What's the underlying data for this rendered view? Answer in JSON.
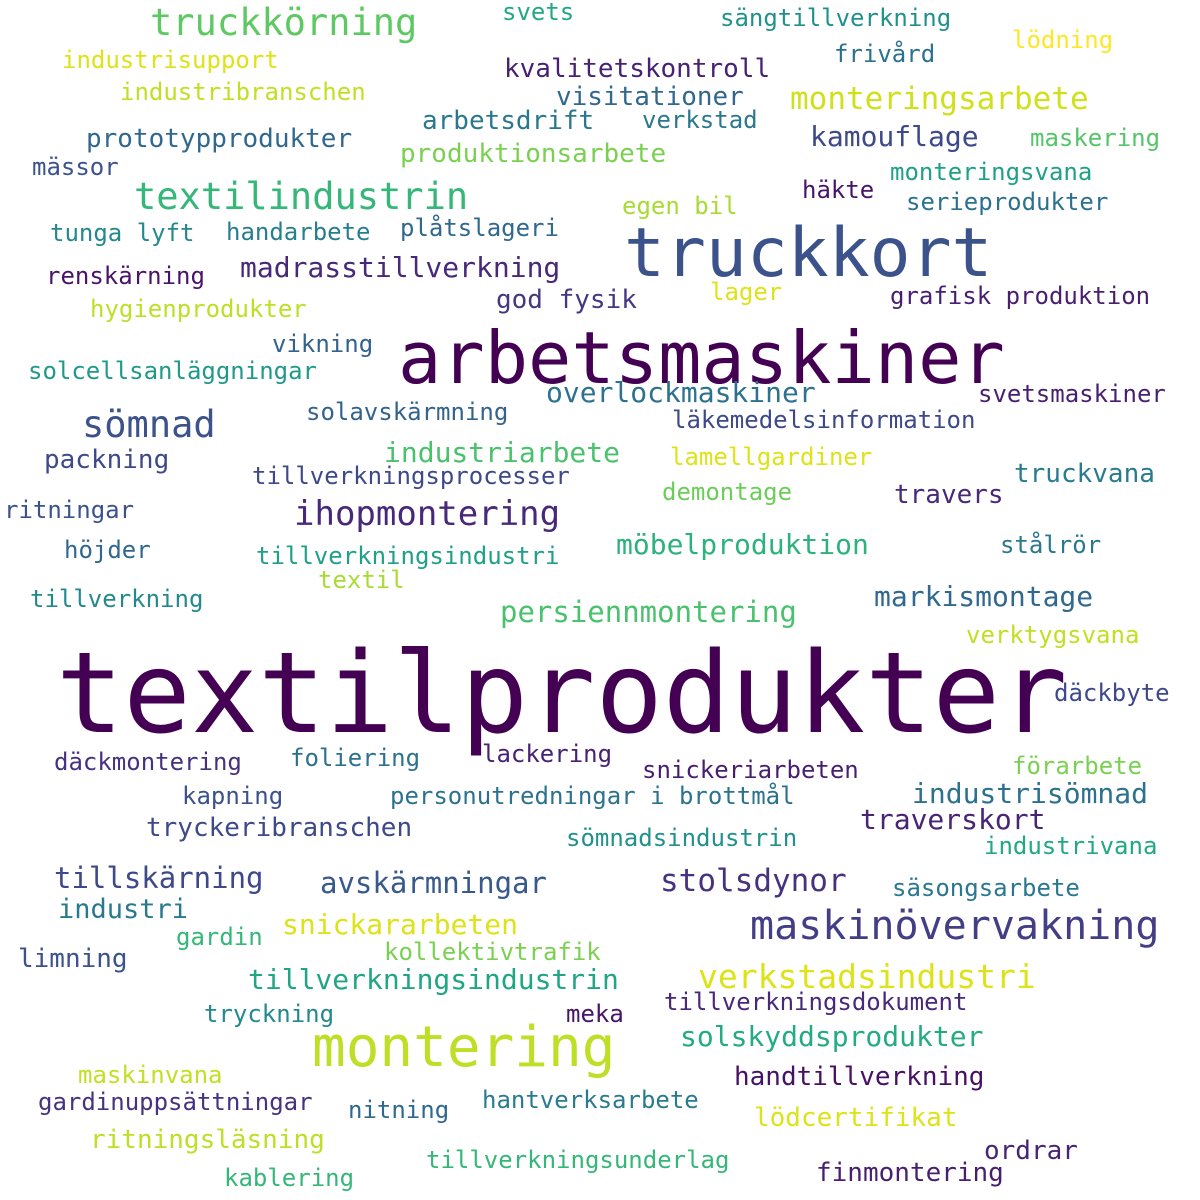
{
  "words": [
    {
      "text": "textilprodukter",
      "color": "#440154"
    },
    {
      "text": "arbetsmaskiner",
      "color": "#440154"
    },
    {
      "text": "truckkort",
      "color": "#3b528b"
    },
    {
      "text": "montering",
      "color": "#bddf26"
    },
    {
      "text": "maskinövervakning",
      "color": "#433e85"
    },
    {
      "text": "truckkörning",
      "color": "#5ec962"
    },
    {
      "text": "textilindustrin",
      "color": "#35b779"
    },
    {
      "text": "sömnad",
      "color": "#3b528b"
    },
    {
      "text": "ihopmontering",
      "color": "#482878"
    },
    {
      "text": "verkstadsindustri",
      "color": "#dde318"
    },
    {
      "text": "monteringsarbete",
      "color": "#d0e11c"
    },
    {
      "text": "stolsdynor",
      "color": "#46327e"
    },
    {
      "text": "avskärmningar",
      "color": "#38598c"
    },
    {
      "text": "tillskärning",
      "color": "#3e4989"
    },
    {
      "text": "industri",
      "color": "#2a788e"
    },
    {
      "text": "persiennmontering",
      "color": "#4ac16d"
    },
    {
      "text": "markismontage",
      "color": "#31688e"
    },
    {
      "text": "möbelproduktion",
      "color": "#2db27d"
    },
    {
      "text": "tillverkningsindustrin",
      "color": "#21a685"
    },
    {
      "text": "solskyddsprodukter",
      "color": "#25ab82"
    },
    {
      "text": "industrisömnad",
      "color": "#2c728e"
    },
    {
      "text": "traverskort",
      "color": "#482475"
    },
    {
      "text": "overlockmaskiner",
      "color": "#2c728e"
    },
    {
      "text": "industriarbete",
      "color": "#4ac16d"
    },
    {
      "text": "madrasstillverkning",
      "color": "#482878"
    },
    {
      "text": "kamouflage",
      "color": "#3e4989"
    },
    {
      "text": "snickararbeten",
      "color": "#dde318"
    },
    {
      "text": "kvalitetskontroll",
      "color": "#482173"
    },
    {
      "text": "visitationer",
      "color": "#31688e"
    },
    {
      "text": "arbetsdrift",
      "color": "#2a788e"
    },
    {
      "text": "prototypprodukter",
      "color": "#31688e"
    },
    {
      "text": "produktionsarbete",
      "color": "#7ad151"
    },
    {
      "text": "handtillverkning",
      "color": "#471164"
    },
    {
      "text": "lödcertifikat",
      "color": "#dde318"
    },
    {
      "text": "ordrar",
      "color": "#482475"
    },
    {
      "text": "finmontering",
      "color": "#481f70"
    },
    {
      "text": "limning",
      "color": "#3b528b"
    },
    {
      "text": "ritningsläsning",
      "color": "#bddf26"
    },
    {
      "text": "hantverksarbete",
      "color": "#287c8e"
    },
    {
      "text": "kablering",
      "color": "#35b779"
    },
    {
      "text": "tillverkningsunderlag",
      "color": "#35b779"
    },
    {
      "text": "tryckeribranschen",
      "color": "#3e4989"
    },
    {
      "text": "travers",
      "color": "#482878"
    },
    {
      "text": "truckvana",
      "color": "#287c8e"
    },
    {
      "text": "god fysik",
      "color": "#453781"
    },
    {
      "text": "grafisk produktion",
      "color": "#481f70"
    },
    {
      "text": "lager",
      "color": "#dde318"
    },
    {
      "text": "packning",
      "color": "#3e4989"
    },
    {
      "text": "sängtillverkning",
      "color": "#21918c"
    },
    {
      "text": "industrisupport",
      "color": "#dde318"
    },
    {
      "text": "industribranschen",
      "color": "#c2df23"
    },
    {
      "text": "svets",
      "color": "#22a884"
    },
    {
      "text": "frivård",
      "color": "#2c728e"
    },
    {
      "text": "lödning",
      "color": "#fde725"
    },
    {
      "text": "verkstad",
      "color": "#2a788e"
    },
    {
      "text": "maskering",
      "color": "#54c568"
    },
    {
      "text": "mässor",
      "color": "#3b528b"
    },
    {
      "text": "monteringsvana",
      "color": "#1fa088"
    },
    {
      "text": "häkte",
      "color": "#481467"
    },
    {
      "text": "serieprodukter",
      "color": "#2c728e"
    },
    {
      "text": "egen bil",
      "color": "#a8db34"
    },
    {
      "text": "tunga lyft",
      "color": "#23898e"
    },
    {
      "text": "handarbete",
      "color": "#277f8e"
    },
    {
      "text": "plåtslageri",
      "color": "#31688e"
    },
    {
      "text": "renskärning",
      "color": "#481467"
    },
    {
      "text": "hygienprodukter",
      "color": "#bddf26"
    },
    {
      "text": "vikning",
      "color": "#33638d"
    },
    {
      "text": "solcellsanläggningar",
      "color": "#1f9a8a"
    },
    {
      "text": "svetsmaskiner",
      "color": "#481f70"
    },
    {
      "text": "solavskärmning",
      "color": "#33638d"
    },
    {
      "text": "läkemedelsinformation",
      "color": "#3e4989"
    },
    {
      "text": "lamellgardiner",
      "color": "#dde318"
    },
    {
      "text": "tillverkningsprocesser",
      "color": "#3e4989"
    },
    {
      "text": "demontage",
      "color": "#6ccd5a"
    },
    {
      "text": "ritningar",
      "color": "#3b528b"
    },
    {
      "text": "höjder",
      "color": "#31688e"
    },
    {
      "text": "tillverkningsindustri",
      "color": "#1fa088"
    },
    {
      "text": "textil",
      "color": "#a8db34"
    },
    {
      "text": "stålrör",
      "color": "#2a788e"
    },
    {
      "text": "tillverkning",
      "color": "#23898e"
    },
    {
      "text": "verktygsvana",
      "color": "#c2df23"
    },
    {
      "text": "däckbyte",
      "color": "#3e4989"
    },
    {
      "text": "däckmontering",
      "color": "#46327e"
    },
    {
      "text": "foliering",
      "color": "#2c728e"
    },
    {
      "text": "lackering",
      "color": "#482173"
    },
    {
      "text": "snickeriarbeten",
      "color": "#481f70"
    },
    {
      "text": "förarbete",
      "color": "#7ad151"
    },
    {
      "text": "kapning",
      "color": "#3b528b"
    },
    {
      "text": "personutredningar i brottmål",
      "color": "#2c728e"
    },
    {
      "text": "sömnadsindustrin",
      "color": "#21918c"
    },
    {
      "text": "industrivana",
      "color": "#22a884"
    },
    {
      "text": "säsongsarbete",
      "color": "#2a788e"
    },
    {
      "text": "gardin",
      "color": "#35b779"
    },
    {
      "text": "kollektivtrafik",
      "color": "#7ad151"
    },
    {
      "text": "tryckning",
      "color": "#23898e"
    },
    {
      "text": "meka",
      "color": "#481467"
    },
    {
      "text": "tillverkningsdokument",
      "color": "#482878"
    },
    {
      "text": "maskinvana",
      "color": "#c2df23"
    },
    {
      "text": "gardinuppsättningar",
      "color": "#46327e"
    },
    {
      "text": "nitning",
      "color": "#31688e"
    }
  ]
}
